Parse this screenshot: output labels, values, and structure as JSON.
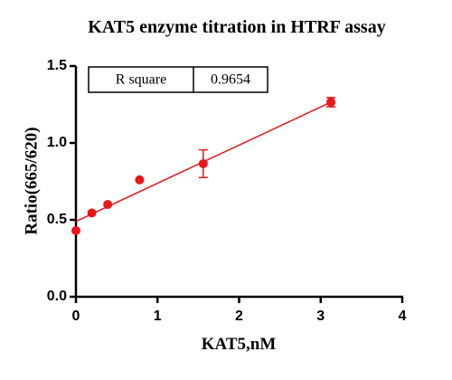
{
  "chart_data": {
    "type": "scatter",
    "title": "KAT5 enzyme titration in HTRF assay",
    "x_label": "KAT5,nM",
    "y_label": "Ratio(665/620)",
    "series": [
      {
        "name": "KAT5",
        "color": "#e8161b",
        "x": [
          0,
          0.195,
          0.39,
          0.78,
          1.56,
          3.125
        ],
        "values": [
          0.43,
          0.545,
          0.6,
          0.76,
          0.865,
          1.265
        ],
        "errors": [
          null,
          null,
          null,
          null,
          0.09,
          0.03
        ]
      }
    ],
    "fit": {
      "color": "#e8161b",
      "x": [
        0,
        3.125
      ],
      "values": [
        0.49,
        1.265
      ]
    },
    "stats_table": {
      "label": "R square",
      "value": "0.9654"
    },
    "xlim": [
      0,
      4
    ],
    "xticks": [
      0,
      1,
      2,
      3,
      4
    ],
    "ylim": [
      0,
      1.5
    ],
    "yticks": [
      {
        "value": 0,
        "label": "0.0"
      },
      {
        "value": 0.5,
        "label": "0.5"
      },
      {
        "value": 1,
        "label": "1.0"
      },
      {
        "value": 1.5,
        "label": "1.5"
      }
    ]
  }
}
